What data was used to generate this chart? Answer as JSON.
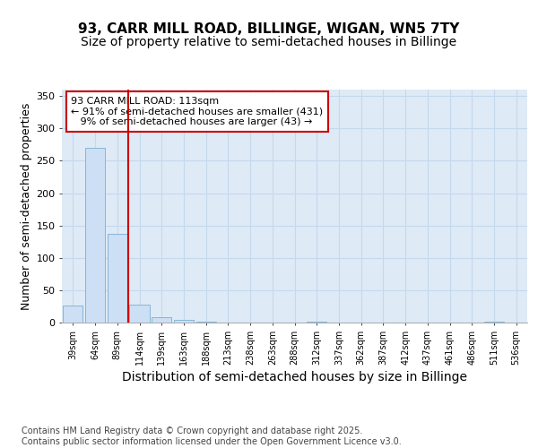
{
  "title_line1": "93, CARR MILL ROAD, BILLINGE, WIGAN, WN5 7TY",
  "title_line2": "Size of property relative to semi-detached houses in Billinge",
  "xlabel": "Distribution of semi-detached houses by size in Billinge",
  "ylabel": "Number of semi-detached properties",
  "categories": [
    "39sqm",
    "64sqm",
    "89sqm",
    "114sqm",
    "139sqm",
    "163sqm",
    "188sqm",
    "213sqm",
    "238sqm",
    "263sqm",
    "288sqm",
    "312sqm",
    "337sqm",
    "362sqm",
    "387sqm",
    "412sqm",
    "437sqm",
    "461sqm",
    "486sqm",
    "511sqm",
    "536sqm"
  ],
  "values": [
    27,
    270,
    137,
    28,
    8,
    4,
    2,
    0,
    0,
    0,
    0,
    1,
    0,
    0,
    0,
    0,
    0,
    0,
    0,
    2,
    0
  ],
  "bar_color": "#ccdff5",
  "bar_edge_color": "#7bafd4",
  "vline_index": 3,
  "annotation_text": "93 CARR MILL ROAD: 113sqm\n← 91% of semi-detached houses are smaller (431)\n   9% of semi-detached houses are larger (43) →",
  "annotation_box_color": "#ffffff",
  "annotation_box_edge_color": "#cc0000",
  "vline_color": "#cc0000",
  "grid_color": "#c5d8ed",
  "background_color": "#deeaf5",
  "ylim": [
    0,
    360
  ],
  "yticks": [
    0,
    50,
    100,
    150,
    200,
    250,
    300,
    350
  ],
  "footer_text": "Contains HM Land Registry data © Crown copyright and database right 2025.\nContains public sector information licensed under the Open Government Licence v3.0.",
  "title_fontsize": 11,
  "subtitle_fontsize": 10,
  "axis_label_fontsize": 9,
  "tick_fontsize": 7,
  "annotation_fontsize": 8,
  "footer_fontsize": 7
}
